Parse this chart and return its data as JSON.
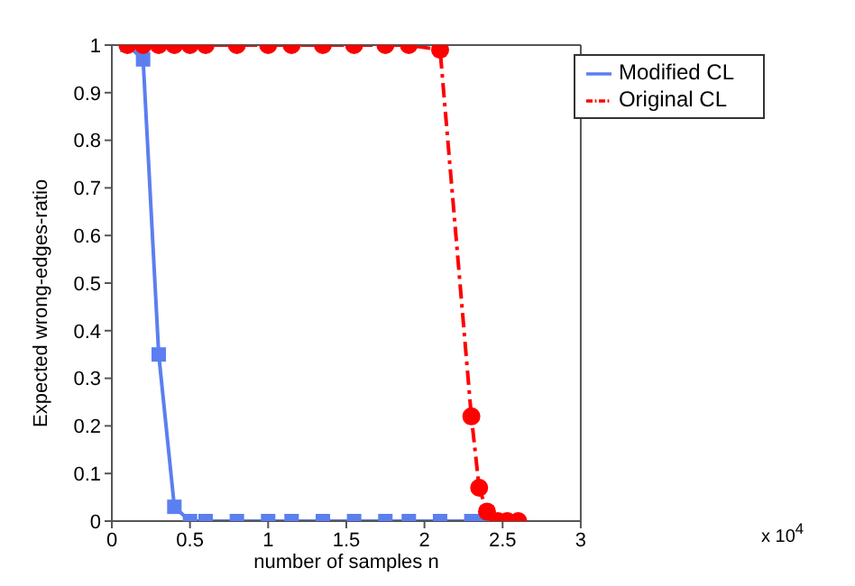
{
  "chart_data": {
    "type": "line",
    "xlabel": "number of samples n",
    "ylabel": "Expected wrong-edges-ratio",
    "xlim": [
      0,
      3
    ],
    "xticks": [
      0,
      0.5,
      1,
      1.5,
      2,
      2.5,
      3
    ],
    "ylim": [
      0,
      1
    ],
    "yticks": [
      0,
      0.1,
      0.2,
      0.3,
      0.4,
      0.5,
      0.6,
      0.7,
      0.8,
      0.9,
      1
    ],
    "legend": "top right",
    "annotations": [
      "x 10$^{4}$"
    ],
    "series": [
      {
        "name": "Modified CL",
        "color": "#5b7ff0",
        "marker": "square",
        "line_style": "solid",
        "x": [
          0.1,
          0.2,
          0.3,
          0.4,
          0.5,
          0.6,
          0.8,
          1.0,
          1.15,
          1.35,
          1.55,
          1.75,
          1.9,
          2.1,
          2.3,
          2.33,
          2.4
        ],
        "values": [
          1,
          0.97,
          0.35,
          0.03,
          0,
          0,
          0,
          0,
          0,
          0,
          0,
          0,
          0,
          0,
          0,
          0,
          0
        ]
      },
      {
        "name": "Original CL",
        "color": "#ff0000",
        "marker": "circle",
        "line_style": "dashed",
        "x": [
          0.1,
          0.2,
          0.3,
          0.4,
          0.5,
          0.6,
          0.8,
          1.0,
          1.15,
          1.35,
          1.55,
          1.75,
          1.9,
          2.1,
          2.3,
          2.35,
          2.4,
          2.47,
          2.53,
          2.6
        ],
        "values": [
          1,
          1,
          1,
          1,
          1,
          1,
          1,
          1,
          1,
          1,
          1,
          1,
          1,
          0.99,
          0.22,
          0.07,
          0.02,
          0,
          0,
          0
        ]
      }
    ]
  }
}
